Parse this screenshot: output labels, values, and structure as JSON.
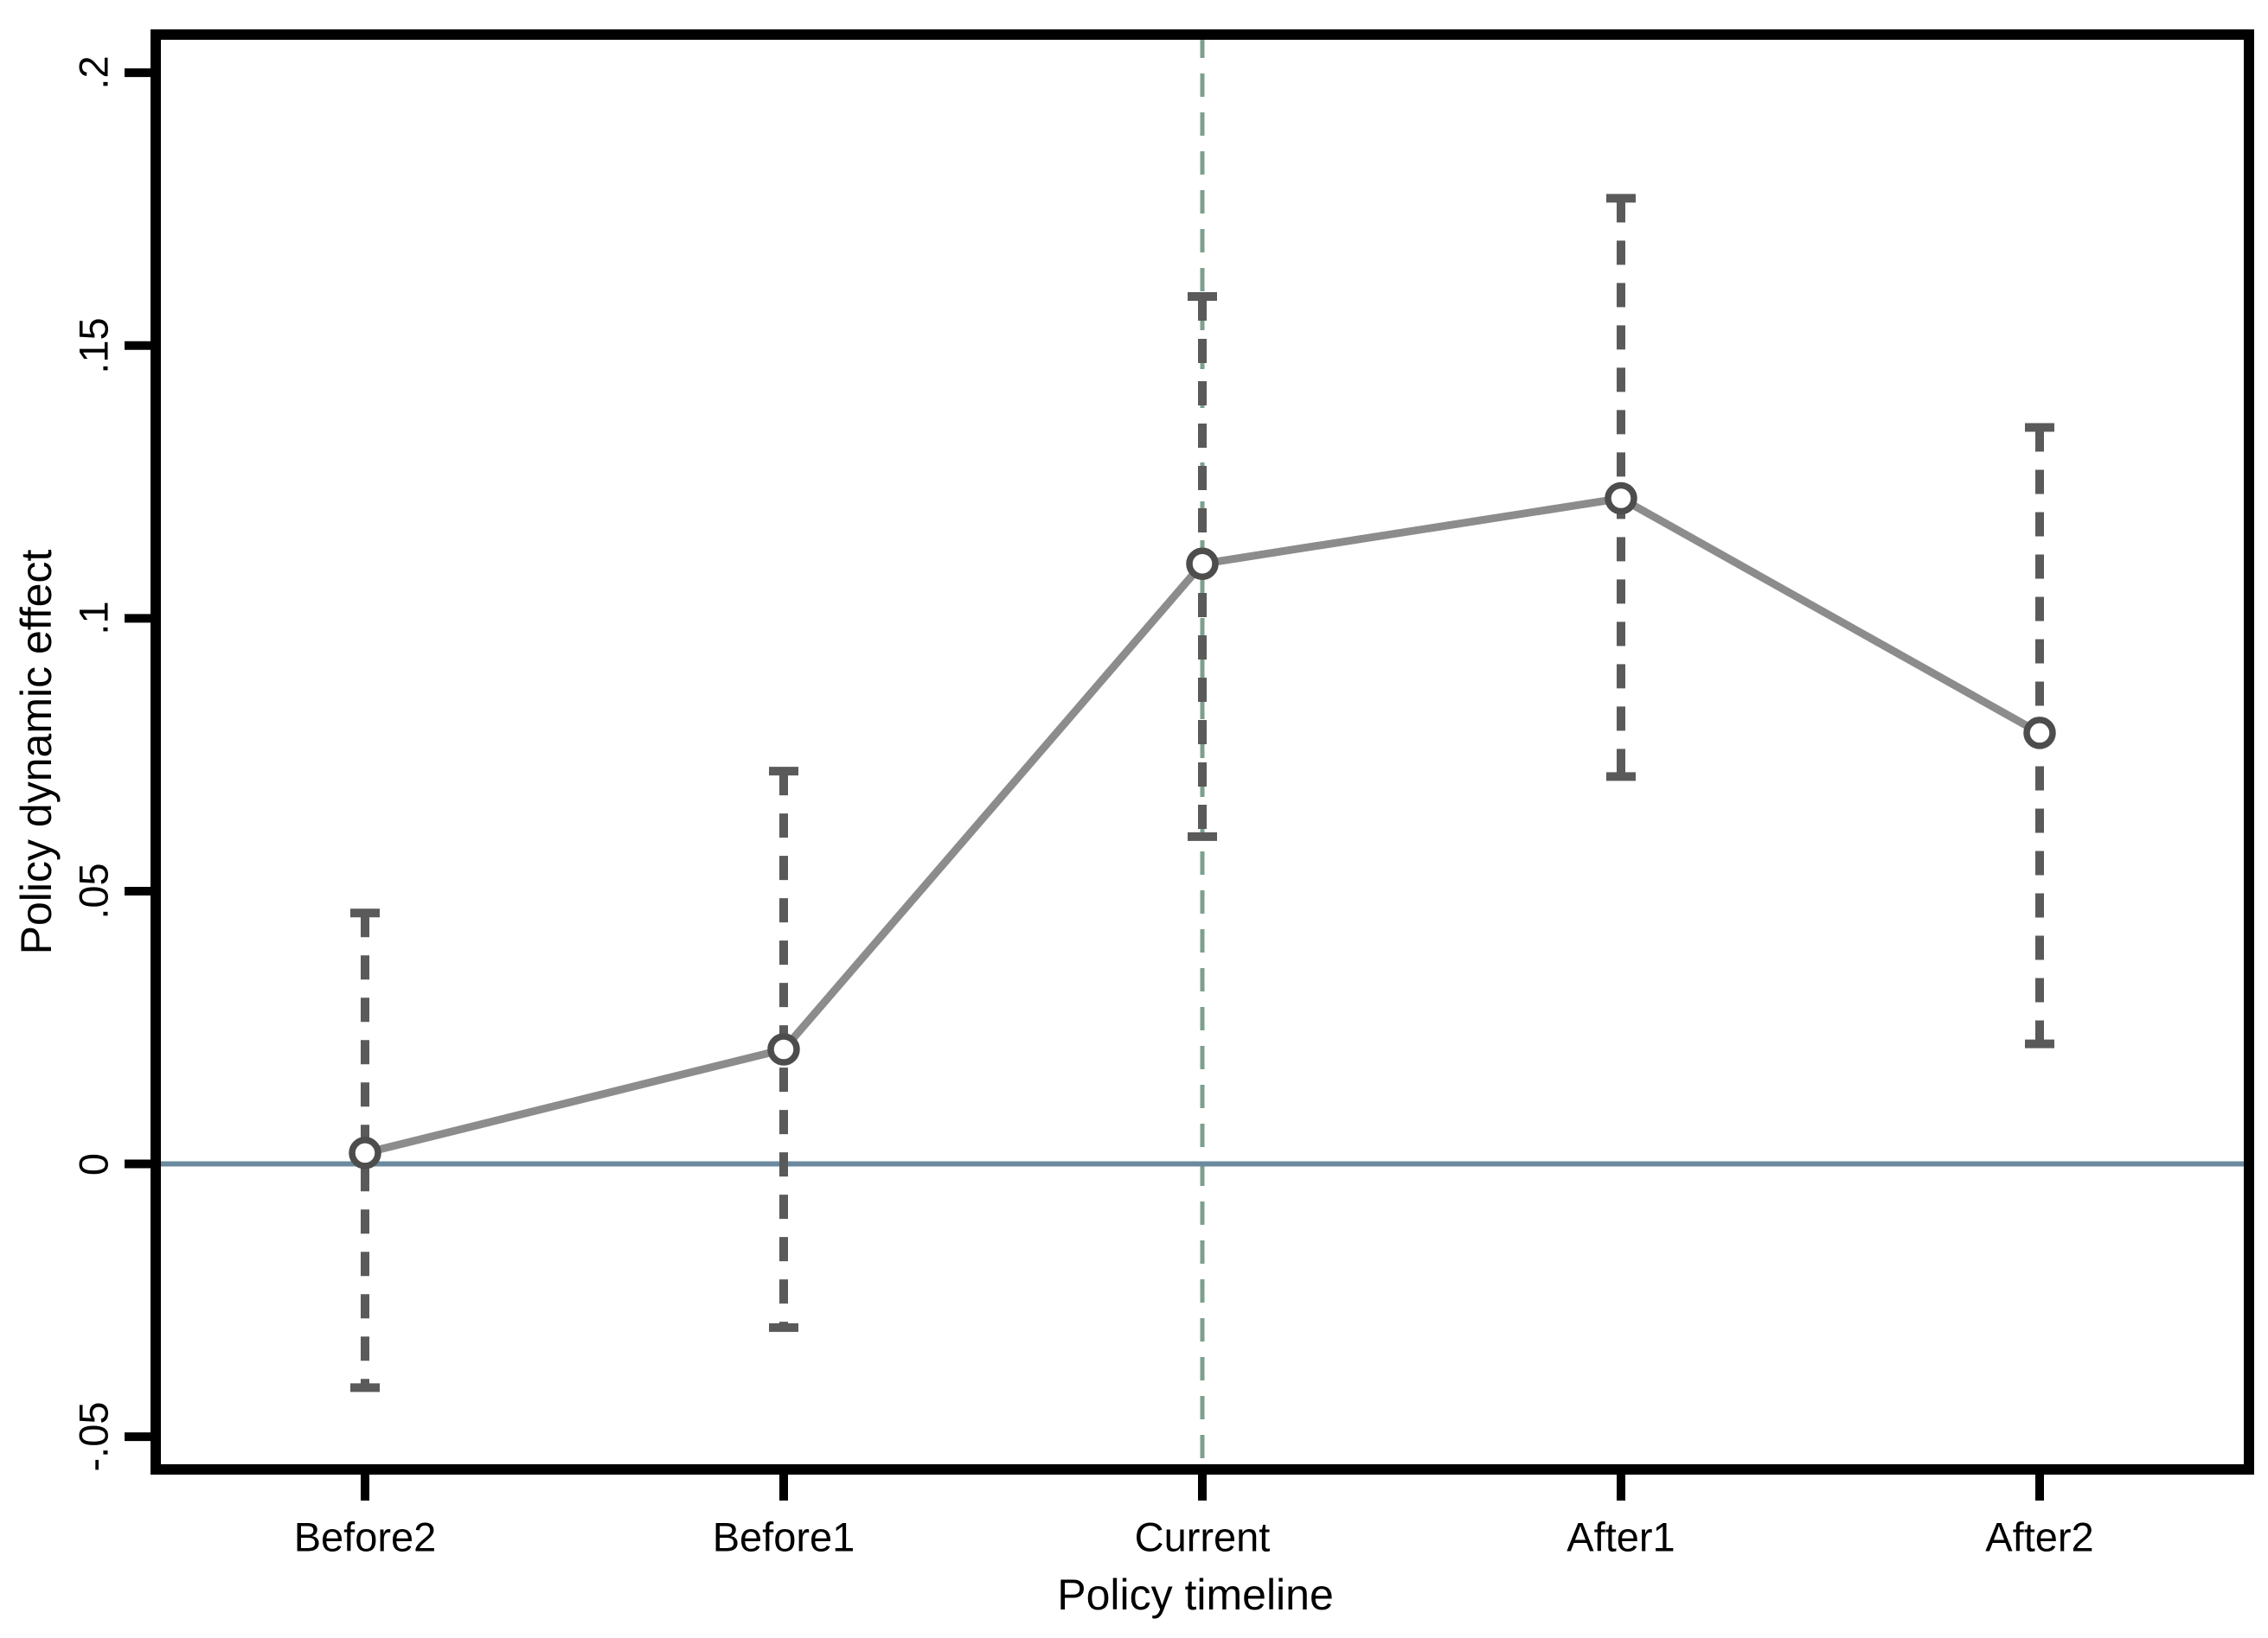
{
  "chart_data": {
    "type": "line",
    "title": "",
    "xlabel": "Policy timeline",
    "ylabel": "Policy dynamic effect",
    "categories": [
      "Before2",
      "Before1",
      "Current",
      "After1",
      "After2"
    ],
    "series": [
      {
        "name": "Policy dynamic effect",
        "values": [
          0.002,
          0.021,
          0.11,
          0.122,
          0.079
        ],
        "ci_lower": [
          -0.041,
          -0.03,
          0.06,
          0.071,
          0.022
        ],
        "ci_upper": [
          0.046,
          0.072,
          0.159,
          0.177,
          0.135
        ]
      }
    ],
    "yticks": {
      "values": [
        -0.05,
        0,
        0.05,
        0.1,
        0.15,
        0.2
      ],
      "labels": [
        "-.05",
        "0",
        ".05",
        ".1",
        ".15",
        ".2"
      ]
    },
    "ylim": [
      -0.056,
      0.207
    ],
    "reference_lines": {
      "horizontal_at": 0,
      "vertical_at_category": "Current"
    },
    "grid": false,
    "legend": false,
    "marker": "hollow-circle",
    "ci_style": "dashed-whisker",
    "colors": {
      "frame": "#000000",
      "text": "#000000",
      "trend_line": "#8c8c8c",
      "marker_stroke": "#4d4d4d",
      "ci": "#5a5a5a",
      "zero_line": "#6b8a9f",
      "policy_vline": "#7da08c",
      "background": "#ffffff"
    }
  }
}
